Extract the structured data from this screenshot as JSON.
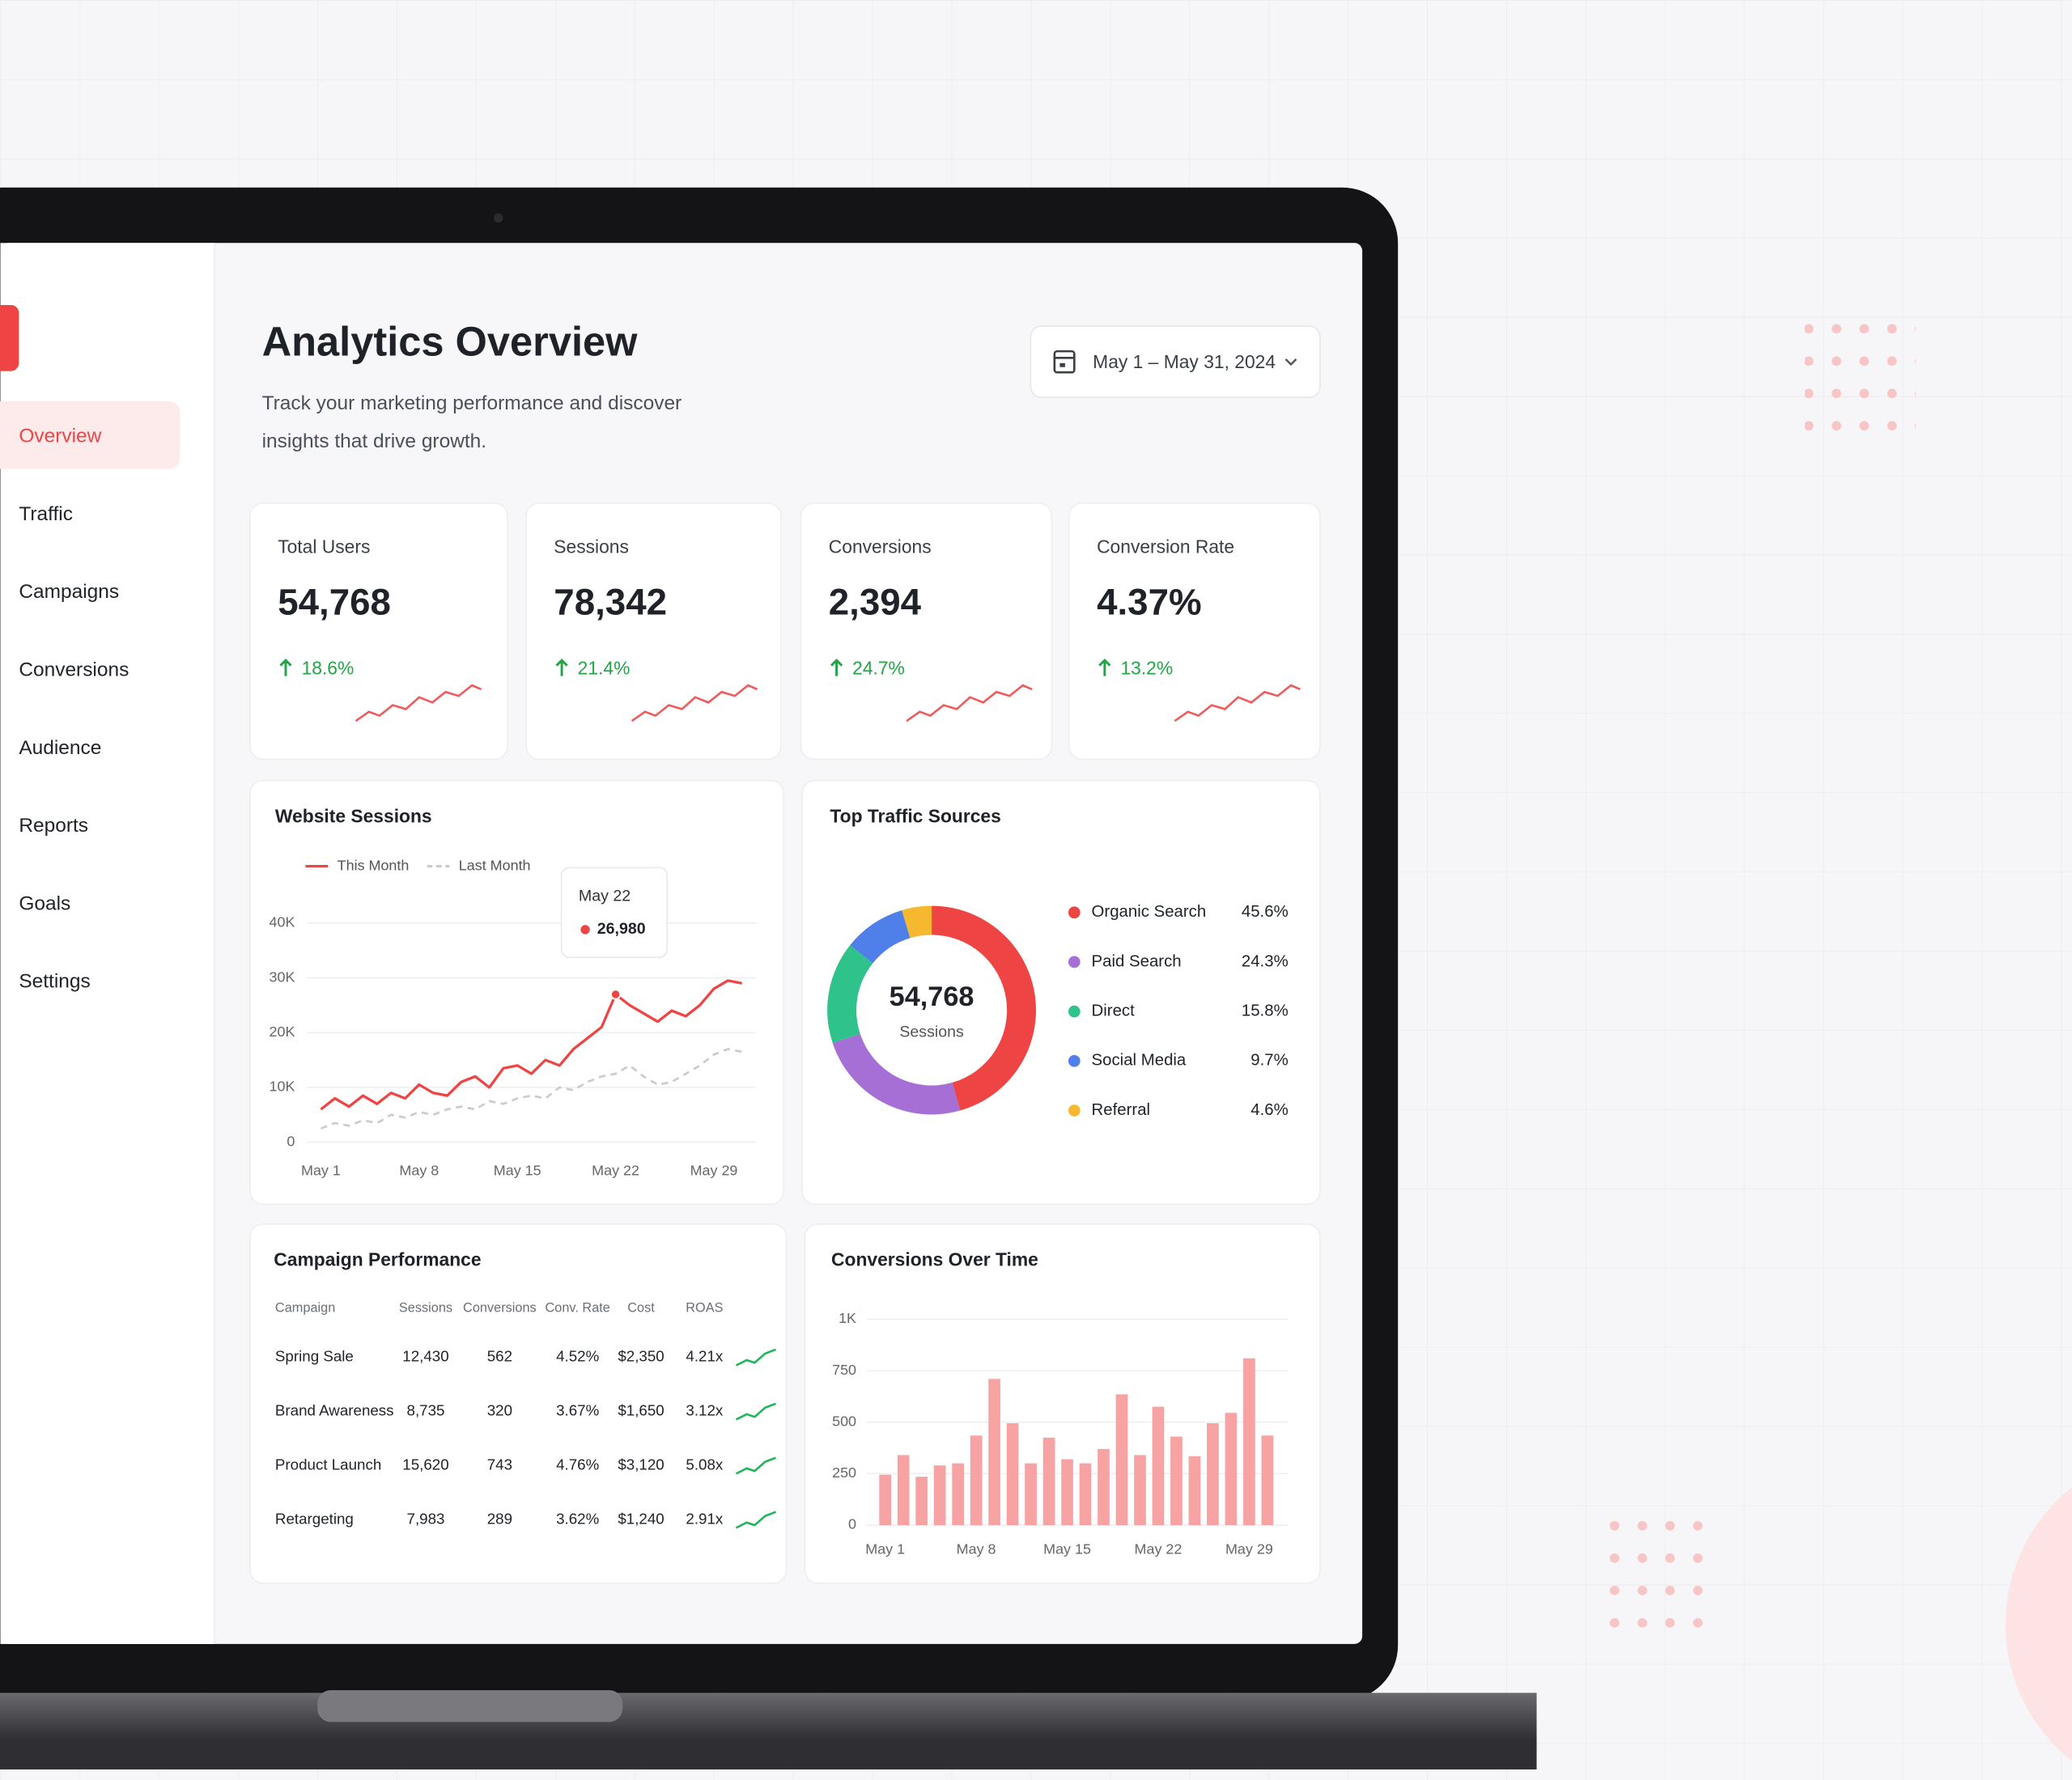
{
  "sidebar": {
    "items": [
      "Overview",
      "Traffic",
      "Campaigns",
      "Conversions",
      "Audience",
      "Reports",
      "Goals",
      "Settings"
    ],
    "active": 0
  },
  "header": {
    "title": "Analytics Overview",
    "subtitle_lines": [
      "Track your marketing performance and discover",
      "insights that drive growth."
    ],
    "date_range": "May 1 – May 31, 2024"
  },
  "kpis": [
    {
      "label": "Total Users",
      "value": "54,768",
      "change": "18.6%"
    },
    {
      "label": "Sessions",
      "value": "78,342",
      "change": "21.4%"
    },
    {
      "label": "Conversions",
      "value": "2,394",
      "change": "24.7%"
    },
    {
      "label": "Conversion Rate",
      "value": "4.37%",
      "change": "13.2%"
    }
  ],
  "sessions_chart": {
    "type": "line",
    "title": "Website Sessions",
    "x": [
      1,
      2,
      3,
      4,
      5,
      6,
      7,
      8,
      9,
      10,
      11,
      12,
      13,
      14,
      15,
      16,
      17,
      18,
      19,
      20,
      21,
      22,
      23,
      24,
      25,
      26,
      27,
      28,
      29,
      30,
      31
    ],
    "xlim": [
      0,
      32
    ],
    "xticks": [
      {
        "value": 1,
        "label": "May 1"
      },
      {
        "value": 8,
        "label": "May 8"
      },
      {
        "value": 15,
        "label": "May 15"
      },
      {
        "value": 22,
        "label": "May 22"
      },
      {
        "value": 29,
        "label": "May 29"
      }
    ],
    "ylim": [
      0,
      40000
    ],
    "yticks": [
      0,
      {
        "value": 10000,
        "label": "10K"
      },
      {
        "value": 20000,
        "label": "20K"
      },
      {
        "value": 30000,
        "label": "30K"
      },
      {
        "value": 40000,
        "label": "40K"
      }
    ],
    "grid": true,
    "series": [
      {
        "name": "This Month",
        "color": "#ef4444",
        "dash": false,
        "values": [
          6000,
          8000,
          6500,
          8500,
          7000,
          9000,
          8000,
          10500,
          9000,
          8500,
          11000,
          12000,
          10000,
          13500,
          14000,
          12500,
          15000,
          14000,
          17000,
          19000,
          21000,
          26980,
          25000,
          23500,
          22000,
          24000,
          23000,
          25000,
          28000,
          29500,
          29000
        ]
      },
      {
        "name": "Last Month",
        "color": "#c9c9ce",
        "dash": true,
        "values": [
          2500,
          3500,
          3000,
          4000,
          3500,
          5000,
          4500,
          5500,
          5000,
          6000,
          6500,
          6000,
          7500,
          7000,
          8000,
          8500,
          8000,
          10000,
          9500,
          11000,
          12000,
          12500,
          14000,
          12000,
          10500,
          11000,
          12500,
          14000,
          16000,
          17000,
          16500
        ]
      }
    ],
    "tooltip": {
      "x": "May 22",
      "label": "26,980"
    }
  },
  "traffic_sources": {
    "type": "pie",
    "title": "Top Traffic Sources",
    "center_value": "54,768",
    "center_label": "Sessions",
    "categories": [
      "Organic Search",
      "Paid Search",
      "Direct",
      "Social Media",
      "Referral"
    ],
    "values": [
      45.6,
      24.3,
      15.8,
      9.7,
      4.6
    ],
    "value_labels": [
      "45.6%",
      "24.3%",
      "15.8%",
      "9.7%",
      "4.6%"
    ],
    "colors": [
      "#ef4444",
      "#a56fd6",
      "#2fc28a",
      "#4f7fe8",
      "#f5b82e"
    ]
  },
  "campaign_table": {
    "title": "Campaign Performance",
    "columns": [
      "Campaign",
      "Sessions",
      "Conversions",
      "Conv. Rate",
      "Cost",
      "ROAS"
    ],
    "rows": [
      [
        "Spring Sale",
        "12,430",
        "562",
        "4.52%",
        "$2,350",
        "4.21x"
      ],
      [
        "Brand Awareness",
        "8,735",
        "320",
        "3.67%",
        "$1,650",
        "3.12x"
      ],
      [
        "Product Launch",
        "15,620",
        "743",
        "4.76%",
        "$3,120",
        "5.08x"
      ],
      [
        "Retargeting",
        "7,983",
        "289",
        "3.62%",
        "$1,240",
        "2.91x"
      ]
    ]
  },
  "conversions_chart": {
    "type": "bar",
    "title": "Conversions Over Time",
    "x": [
      1,
      2.4,
      3.8,
      5.2,
      6.6,
      8,
      9.4,
      10.8,
      12.2,
      13.6,
      15,
      16.4,
      17.8,
      19.2,
      20.6,
      22,
      23.4,
      24.8,
      26.2,
      27.6,
      29,
      30.4
    ],
    "values": [
      245,
      340,
      235,
      290,
      300,
      435,
      710,
      495,
      300,
      425,
      320,
      300,
      370,
      635,
      340,
      575,
      430,
      335,
      495,
      545,
      810,
      435
    ],
    "color": "#f7a3a3",
    "xlim": [
      0,
      31.5
    ],
    "xticks": [
      {
        "value": 1,
        "label": "May 1"
      },
      {
        "value": 8,
        "label": "May 8"
      },
      {
        "value": 15,
        "label": "May 15"
      },
      {
        "value": 22,
        "label": "May 22"
      },
      {
        "value": 29,
        "label": "May 29"
      }
    ],
    "ylim": [
      0,
      1000
    ],
    "yticks": [
      0,
      250,
      500,
      750,
      {
        "value": 1000,
        "label": "1K"
      }
    ],
    "grid": true
  }
}
